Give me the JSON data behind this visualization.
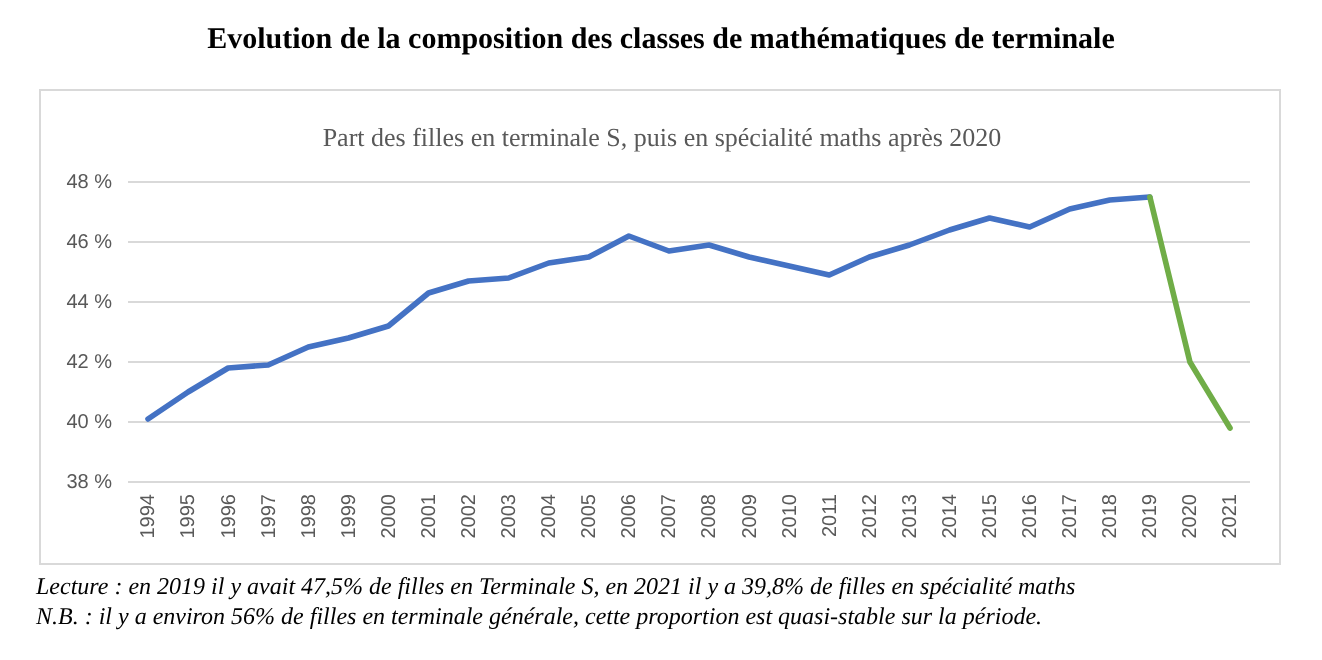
{
  "chart_data": {
    "type": "line",
    "title": "Evolution de la composition des classes de mathématiques de terminale",
    "subtitle": "Part des filles en terminale S, puis en spécialité maths après 2020",
    "categories": [
      "1994",
      "1995",
      "1996",
      "1997",
      "1998",
      "1999",
      "2000",
      "2001",
      "2002",
      "2003",
      "2004",
      "2005",
      "2006",
      "2007",
      "2008",
      "2009",
      "2010",
      "2011",
      "2012",
      "2013",
      "2014",
      "2015",
      "2016",
      "2017",
      "2018",
      "2019",
      "2020",
      "2021"
    ],
    "series": [
      {
        "color": "#4472c4",
        "values": [
          40.1,
          41.0,
          41.8,
          41.9,
          42.5,
          42.8,
          43.2,
          44.3,
          44.7,
          44.8,
          45.3,
          45.5,
          46.2,
          45.7,
          45.9,
          45.5,
          45.2,
          44.9,
          45.5,
          45.9,
          46.4,
          46.8,
          46.5,
          47.1,
          47.4,
          47.5,
          null,
          null
        ]
      },
      {
        "color": "#70ad47",
        "values": [
          null,
          null,
          null,
          null,
          null,
          null,
          null,
          null,
          null,
          null,
          null,
          null,
          null,
          null,
          null,
          null,
          null,
          null,
          null,
          null,
          null,
          null,
          null,
          null,
          null,
          47.5,
          42.0,
          39.8
        ]
      }
    ],
    "ylim": [
      38,
      48
    ],
    "yticks": [
      {
        "value": 38,
        "label": "38 %"
      },
      {
        "value": 40,
        "label": "40 %"
      },
      {
        "value": 42,
        "label": "42 %"
      },
      {
        "value": 44,
        "label": "44 %"
      },
      {
        "value": 46,
        "label": "46 %"
      },
      {
        "value": 48,
        "label": "48 %"
      }
    ],
    "grid": "y",
    "marker": "none",
    "line_style": "solid",
    "annotations": [
      "Lecture : en 2019 il y avait 47,5% de filles en Terminale S, en 2021 il y a 39,8% de filles en spécialité maths",
      "N.B. : il y a environ 56% de filles en terminale générale, cette proportion est quasi-stable sur la période."
    ]
  }
}
